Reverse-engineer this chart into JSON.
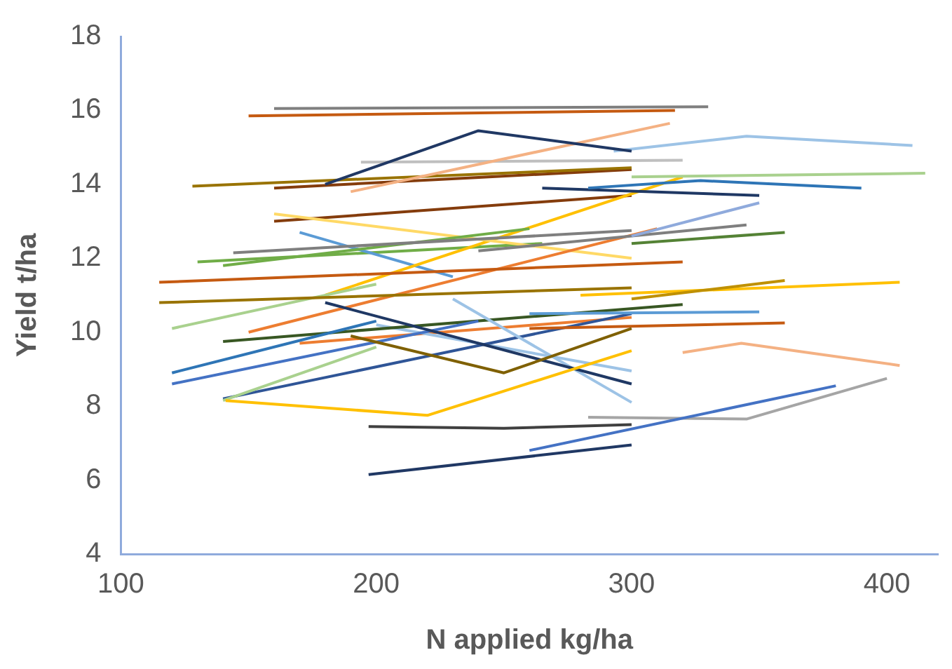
{
  "chart_data": {
    "type": "line",
    "xlabel": "N applied kg/ha",
    "ylabel": "Yield t/ha",
    "xlim": [
      100,
      420
    ],
    "xticks": [
      100,
      200,
      300,
      400
    ],
    "ylim": [
      4,
      18
    ],
    "yticks": [
      4,
      6,
      8,
      10,
      12,
      14,
      16,
      18
    ],
    "grid": false,
    "legend": false,
    "marker": "none",
    "line_style": "solid",
    "series": [
      {
        "color": "#7f7f7f",
        "x": [
          160,
          330
        ],
        "values": [
          16.05,
          16.1
        ]
      },
      {
        "color": "#c55a11",
        "x": [
          150,
          317
        ],
        "values": [
          15.85,
          16.0
        ]
      },
      {
        "color": "#203864",
        "x": [
          180,
          240,
          300
        ],
        "values": [
          14.0,
          15.45,
          14.9
        ]
      },
      {
        "color": "#f4b183",
        "x": [
          190,
          315
        ],
        "values": [
          13.8,
          15.65
        ]
      },
      {
        "color": "#9dc3e6",
        "x": [
          293,
          345,
          410
        ],
        "values": [
          14.9,
          15.3,
          15.05
        ]
      },
      {
        "color": "#a9d18e",
        "x": [
          300,
          415
        ],
        "values": [
          14.2,
          14.3
        ]
      },
      {
        "color": "#2e75b6",
        "x": [
          283,
          327,
          390
        ],
        "values": [
          13.9,
          14.1,
          13.9
        ]
      },
      {
        "color": "#1f3864",
        "x": [
          265,
          350
        ],
        "values": [
          13.9,
          13.7
        ]
      },
      {
        "color": "#997300",
        "x": [
          128,
          300
        ],
        "values": [
          13.95,
          14.45
        ]
      },
      {
        "color": "#bfbfbf",
        "x": [
          194,
          320
        ],
        "values": [
          14.6,
          14.65
        ]
      },
      {
        "color": "#843c0c",
        "x": [
          160,
          300
        ],
        "values": [
          13.9,
          14.4
        ]
      },
      {
        "color": "#8faadc",
        "x": [
          300,
          350
        ],
        "values": [
          12.6,
          13.5
        ]
      },
      {
        "color": "#7f7f7f",
        "x": [
          240,
          345
        ],
        "values": [
          12.2,
          12.9
        ]
      },
      {
        "color": "#548235",
        "x": [
          300,
          360
        ],
        "values": [
          12.4,
          12.7
        ]
      },
      {
        "color": "#c55a11",
        "x": [
          115,
          320
        ],
        "values": [
          11.35,
          11.9
        ]
      },
      {
        "color": "#997300",
        "x": [
          115,
          300
        ],
        "values": [
          10.8,
          11.2
        ]
      },
      {
        "color": "#bf9000",
        "x": [
          300,
          360
        ],
        "values": [
          10.9,
          11.4
        ]
      },
      {
        "color": "#ffc000",
        "x": [
          280,
          405
        ],
        "values": [
          11.0,
          11.35
        ]
      },
      {
        "color": "#a9d18e",
        "x": [
          120,
          200
        ],
        "values": [
          10.1,
          11.3
        ]
      },
      {
        "color": "#f4b183",
        "x": [
          320,
          343,
          405
        ],
        "values": [
          9.45,
          9.7,
          9.1
        ]
      },
      {
        "color": "#4472c4",
        "x": [
          260,
          380
        ],
        "values": [
          6.8,
          8.55
        ]
      },
      {
        "color": "#a5a5a5",
        "x": [
          283,
          345,
          400
        ],
        "values": [
          7.7,
          7.65,
          8.75
        ]
      },
      {
        "color": "#404040",
        "x": [
          197,
          250,
          300
        ],
        "values": [
          7.45,
          7.4,
          7.5
        ]
      },
      {
        "color": "#203864",
        "x": [
          197,
          300
        ],
        "values": [
          6.15,
          6.95
        ]
      },
      {
        "color": "#ffc000",
        "x": [
          141,
          220,
          300
        ],
        "values": [
          8.15,
          7.75,
          9.5
        ]
      },
      {
        "color": "#7f6000",
        "x": [
          190,
          250,
          300
        ],
        "values": [
          9.9,
          8.9,
          10.1
        ]
      },
      {
        "color": "#1f3864",
        "x": [
          180,
          300
        ],
        "values": [
          10.8,
          8.6
        ]
      },
      {
        "color": "#9dc3e6",
        "x": [
          230,
          300
        ],
        "values": [
          10.9,
          8.1
        ]
      },
      {
        "color": "#4472c4",
        "x": [
          120,
          240
        ],
        "values": [
          8.6,
          10.3
        ]
      },
      {
        "color": "#2e75b6",
        "x": [
          120,
          200
        ],
        "values": [
          8.9,
          10.3
        ]
      },
      {
        "color": "#a9d18e",
        "x": [
          140,
          200
        ],
        "values": [
          8.15,
          9.6
        ]
      },
      {
        "color": "#5b9bd5",
        "x": [
          260,
          350
        ],
        "values": [
          10.5,
          10.55
        ]
      },
      {
        "color": "#c55a11",
        "x": [
          260,
          360
        ],
        "values": [
          10.1,
          10.25
        ]
      },
      {
        "color": "#385723",
        "x": [
          140,
          320
        ],
        "values": [
          9.75,
          10.75
        ]
      },
      {
        "color": "#ed7d31",
        "x": [
          150,
          310
        ],
        "values": [
          10.0,
          12.8
        ]
      },
      {
        "color": "#7f7f7f",
        "x": [
          144,
          300
        ],
        "values": [
          12.15,
          12.75
        ]
      },
      {
        "color": "#70ad47",
        "x": [
          140,
          260
        ],
        "values": [
          11.8,
          12.8
        ]
      },
      {
        "color": "#ffd966",
        "x": [
          160,
          300
        ],
        "values": [
          13.2,
          12.0
        ]
      },
      {
        "color": "#ffc000",
        "x": [
          180,
          320
        ],
        "values": [
          11.0,
          14.2
        ]
      },
      {
        "color": "#2f5597",
        "x": [
          140,
          300
        ],
        "values": [
          8.2,
          10.5
        ]
      },
      {
        "color": "#9dc3e6",
        "x": [
          200,
          300
        ],
        "values": [
          10.2,
          8.95
        ]
      },
      {
        "color": "#843c0c",
        "x": [
          160,
          300
        ],
        "values": [
          13.0,
          13.7
        ]
      },
      {
        "color": "#5b9bd5",
        "x": [
          170,
          230
        ],
        "values": [
          12.7,
          11.5
        ]
      },
      {
        "color": "#70ad47",
        "x": [
          130,
          265
        ],
        "values": [
          11.9,
          12.4
        ]
      },
      {
        "color": "#ed7d31",
        "x": [
          170,
          300
        ],
        "values": [
          9.7,
          10.4
        ]
      }
    ]
  }
}
